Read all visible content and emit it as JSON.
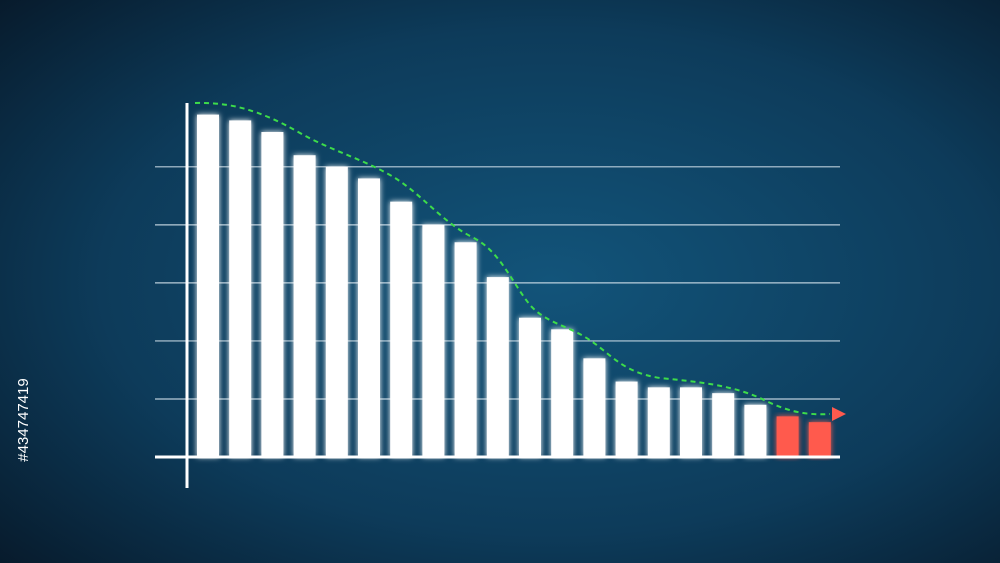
{
  "chart_data": {
    "type": "bar",
    "values": [
      5.9,
      5.8,
      5.6,
      5.2,
      5.0,
      4.8,
      4.4,
      4.0,
      3.7,
      3.1,
      2.4,
      2.2,
      1.7,
      1.3,
      1.2,
      1.2,
      1.1,
      0.9,
      0.7,
      0.6
    ],
    "colors": [
      "#ffffff",
      "#ffffff",
      "#ffffff",
      "#ffffff",
      "#ffffff",
      "#ffffff",
      "#ffffff",
      "#ffffff",
      "#ffffff",
      "#ffffff",
      "#ffffff",
      "#ffffff",
      "#ffffff",
      "#ffffff",
      "#ffffff",
      "#ffffff",
      "#ffffff",
      "#ffffff",
      "#ff5a4e",
      "#ff5a4e"
    ],
    "ylim": [
      0,
      6.1
    ],
    "yticks": [
      1,
      2,
      3,
      4,
      5
    ],
    "grid": true
  },
  "watermark": "#434747419"
}
